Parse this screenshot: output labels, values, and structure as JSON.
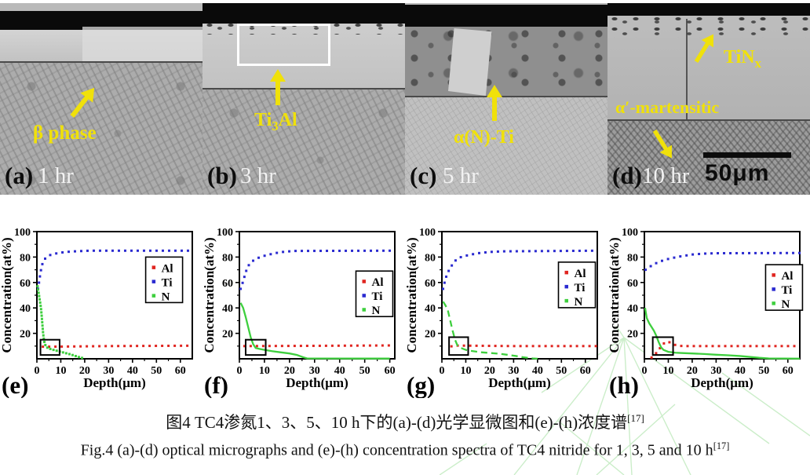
{
  "micrographs": {
    "panels": [
      {
        "letter": "(a)",
        "time": "1 hr",
        "annotation": {
          "pre": "β phase",
          "sub": "",
          "post": ""
        }
      },
      {
        "letter": "(b)",
        "time": "3 hr",
        "annotation": {
          "pre": "Ti",
          "sub": "3",
          "post": "Al"
        }
      },
      {
        "letter": "(c)",
        "time": "5 hr",
        "annotation": {
          "pre": "α(N)-Ti",
          "sub": "",
          "post": ""
        }
      },
      {
        "letter": "(d)",
        "time": "10 hr",
        "annotation": {
          "pre": "TiN",
          "sub": "x",
          "post": ""
        },
        "annotation2": "α′-martensitic",
        "scale_bar": "50μm"
      }
    ]
  },
  "chart_data": [
    {
      "type": "scatter",
      "label": "(e)",
      "xlabel": "Depth(μm)",
      "ylabel": "Concentration(at%)",
      "xlim": [
        0,
        65
      ],
      "ylim": [
        0,
        100
      ],
      "xticks": [
        0,
        10,
        20,
        30,
        40,
        50,
        60
      ],
      "yticks": [
        20,
        40,
        60,
        80,
        100
      ],
      "legend_pos": [
        0.7,
        0.2
      ],
      "highlight_box": [
        1.5,
        3,
        9.5,
        15
      ],
      "series": [
        {
          "name": "Al",
          "color": "#e02520",
          "style": "dots",
          "gap": 8,
          "anchors": [
            [
              2.5,
              9.5
            ],
            [
              10,
              9.6
            ],
            [
              30,
              10
            ],
            [
              65,
              10.3
            ]
          ]
        },
        {
          "name": "Ti",
          "color": "#2a2ad0",
          "style": "dots",
          "gap": 8,
          "anchors": [
            [
              0.5,
              55
            ],
            [
              1.2,
              64
            ],
            [
              2,
              73
            ],
            [
              3,
              78
            ],
            [
              4.5,
              80.5
            ],
            [
              6,
              82
            ],
            [
              9,
              83.2
            ],
            [
              12,
              84
            ],
            [
              16,
              84.5
            ],
            [
              22,
              85
            ],
            [
              65,
              85
            ]
          ]
        },
        {
          "name": "N",
          "color": "#3ecf3e",
          "style": "dots",
          "gap": 4.2,
          "anchors": [
            [
              0.3,
              57
            ],
            [
              0.8,
              51
            ],
            [
              1.3,
              45
            ],
            [
              1.7,
              40
            ],
            [
              2,
              34
            ],
            [
              2.3,
              27
            ],
            [
              2.6,
              20
            ],
            [
              3,
              14
            ],
            [
              3.6,
              10.5
            ],
            [
              4.5,
              8.5
            ],
            [
              6,
              7.5
            ],
            [
              8,
              6.5
            ],
            [
              10,
              5.5
            ],
            [
              12,
              4.5
            ],
            [
              14,
              3.5
            ],
            [
              16,
              2.3
            ],
            [
              18,
              1.1
            ],
            [
              20,
              0.2
            ]
          ]
        }
      ]
    },
    {
      "type": "scatter",
      "label": "(f)",
      "xlabel": "Depth(μm)",
      "ylabel": "Concentration(at%)",
      "xlim": [
        0,
        62
      ],
      "ylim": [
        0,
        100
      ],
      "xticks": [
        0,
        10,
        20,
        30,
        40,
        50,
        60
      ],
      "yticks": [
        20,
        40,
        60,
        80,
        100
      ],
      "legend_pos": [
        0.75,
        0.31
      ],
      "highlight_box": [
        2.5,
        3,
        10.5,
        15
      ],
      "series": [
        {
          "name": "Al",
          "color": "#e02520",
          "style": "dots",
          "gap": 8,
          "anchors": [
            [
              2,
              10
            ],
            [
              30,
              10.2
            ],
            [
              60,
              10.5
            ]
          ]
        },
        {
          "name": "Ti",
          "color": "#2a2ad0",
          "style": "dots",
          "gap": 8,
          "anchors": [
            [
              0.5,
              55
            ],
            [
              1.5,
              61
            ],
            [
              2.5,
              68
            ],
            [
              3.5,
              73
            ],
            [
              5,
              76.5
            ],
            [
              7,
              79
            ],
            [
              10,
              81
            ],
            [
              14,
              83
            ],
            [
              18,
              84.2
            ],
            [
              22,
              84.8
            ],
            [
              60,
              85
            ]
          ]
        },
        {
          "name": "N",
          "color": "#3ecf3e",
          "style": "line",
          "anchors": [
            [
              0.5,
              44
            ],
            [
              1.5,
              40
            ],
            [
              2.5,
              33
            ],
            [
              3.5,
              25
            ],
            [
              4.5,
              17
            ],
            [
              5.5,
              11.5
            ],
            [
              6.5,
              8.5
            ],
            [
              8,
              7.8
            ],
            [
              10,
              7
            ],
            [
              13,
              6
            ],
            [
              16,
              5.2
            ],
            [
              20,
              4.2
            ],
            [
              23,
              3
            ],
            [
              25.5,
              1.2
            ],
            [
              27,
              0.3
            ],
            [
              60,
              0.2
            ]
          ]
        }
      ]
    },
    {
      "type": "scatter",
      "label": "(g)",
      "xlabel": "Depth(μm)",
      "ylabel": "Concentration(at%)",
      "xlim": [
        0,
        65
      ],
      "ylim": [
        0,
        100
      ],
      "xticks": [
        0,
        10,
        20,
        30,
        40,
        50,
        60
      ],
      "yticks": [
        20,
        40,
        60,
        80,
        100
      ],
      "legend_pos": [
        0.75,
        0.24
      ],
      "highlight_box": [
        3,
        3,
        11,
        17
      ],
      "series": [
        {
          "name": "Al",
          "color": "#e02520",
          "style": "dots",
          "gap": 8,
          "anchors": [
            [
              4,
              9.8
            ],
            [
              6,
              10.4
            ],
            [
              30,
              10
            ],
            [
              65,
              10
            ]
          ]
        },
        {
          "name": "Ti",
          "color": "#2a2ad0",
          "style": "dots",
          "gap": 8,
          "anchors": [
            [
              0.5,
              55
            ],
            [
              1.5,
              63
            ],
            [
              2.5,
              68
            ],
            [
              4,
              73
            ],
            [
              6,
              78
            ],
            [
              8,
              80
            ],
            [
              11,
              81.5
            ],
            [
              15,
              83
            ],
            [
              20,
              84
            ],
            [
              26,
              84.5
            ],
            [
              65,
              85
            ]
          ]
        },
        {
          "name": "N",
          "color": "#3ecf3e",
          "style": "line",
          "dash": "8 5",
          "anchors": [
            [
              0.5,
              45
            ],
            [
              1.5,
              42
            ],
            [
              2.5,
              38
            ],
            [
              3.5,
              30
            ],
            [
              4.5,
              22
            ],
            [
              5.5,
              15
            ],
            [
              6.5,
              10.5
            ],
            [
              8,
              8.5
            ],
            [
              10,
              7
            ],
            [
              13,
              6
            ],
            [
              16,
              5.2
            ],
            [
              20,
              4.6
            ],
            [
              24,
              4
            ],
            [
              28,
              3
            ],
            [
              31,
              2.2
            ],
            [
              34,
              1.2
            ],
            [
              38,
              0.3
            ],
            [
              40,
              0.1
            ]
          ]
        }
      ]
    },
    {
      "type": "scatter",
      "label": "(h)",
      "xlabel": "Depth(μm)",
      "ylabel": "Concentration(at%)",
      "xlim": [
        0,
        65
      ],
      "ylim": [
        0,
        100
      ],
      "xticks": [
        0,
        10,
        20,
        30,
        40,
        50,
        60
      ],
      "yticks": [
        20,
        40,
        60,
        80,
        100
      ],
      "legend_pos": [
        0.78,
        0.26
      ],
      "highlight_box": [
        3.5,
        3,
        12,
        17
      ],
      "series": [
        {
          "name": "Al",
          "color": "#e02520",
          "style": "dots",
          "gap": 8,
          "anchors": [
            [
              3,
              1
            ],
            [
              4.5,
              3.5
            ],
            [
              6,
              7
            ],
            [
              7.5,
              11
            ],
            [
              9,
              13.5
            ],
            [
              10.5,
              13
            ],
            [
              12,
              11.5
            ],
            [
              13.5,
              10.5
            ],
            [
              16,
              10
            ],
            [
              65,
              10
            ]
          ]
        },
        {
          "name": "Ti",
          "color": "#2a2ad0",
          "style": "dots",
          "gap": 8,
          "anchors": [
            [
              0.5,
              70
            ],
            [
              2,
              72
            ],
            [
              4,
              74.5
            ],
            [
              6,
              76
            ],
            [
              8,
              77.5
            ],
            [
              11,
              79
            ],
            [
              15,
              80.5
            ],
            [
              20,
              82
            ],
            [
              25,
              82.7
            ],
            [
              30,
              83
            ],
            [
              65,
              83.2
            ]
          ]
        },
        {
          "name": "N",
          "color": "#3ecf3e",
          "style": "line",
          "anchors": [
            [
              0.3,
              40
            ],
            [
              1,
              32
            ],
            [
              2,
              28
            ],
            [
              3,
              25
            ],
            [
              4,
              22
            ],
            [
              5,
              18
            ],
            [
              6,
              13
            ],
            [
              7,
              9
            ],
            [
              8,
              7
            ],
            [
              10,
              5.5
            ],
            [
              13,
              4.8
            ],
            [
              16,
              4.5
            ],
            [
              20,
              4.2
            ],
            [
              25,
              3.8
            ],
            [
              30,
              3.2
            ],
            [
              35,
              2.8
            ],
            [
              40,
              2.2
            ],
            [
              44,
              1.5
            ],
            [
              48,
              0.8
            ],
            [
              52,
              0.3
            ],
            [
              65,
              0.15
            ]
          ]
        }
      ]
    }
  ],
  "caption": {
    "line_cn": "图4 TC4渗氮1、3、5、10 h下的(a)-(d)光学显微图和(e)-(h)浓度谱",
    "ref_cn": "[17]",
    "line_en": "Fig.4 (a)-(d) optical micrographs and (e)-(h) concentration spectra of TC4 nitride for 1, 3, 5 and 10 h",
    "ref_en": "[17]"
  },
  "colors": {
    "annotation_yellow": "#f0e10a",
    "al_red": "#e02520",
    "ti_blue": "#2a2ad0",
    "n_green": "#3ecf3e",
    "watermark_green": "#c6ecc4"
  }
}
